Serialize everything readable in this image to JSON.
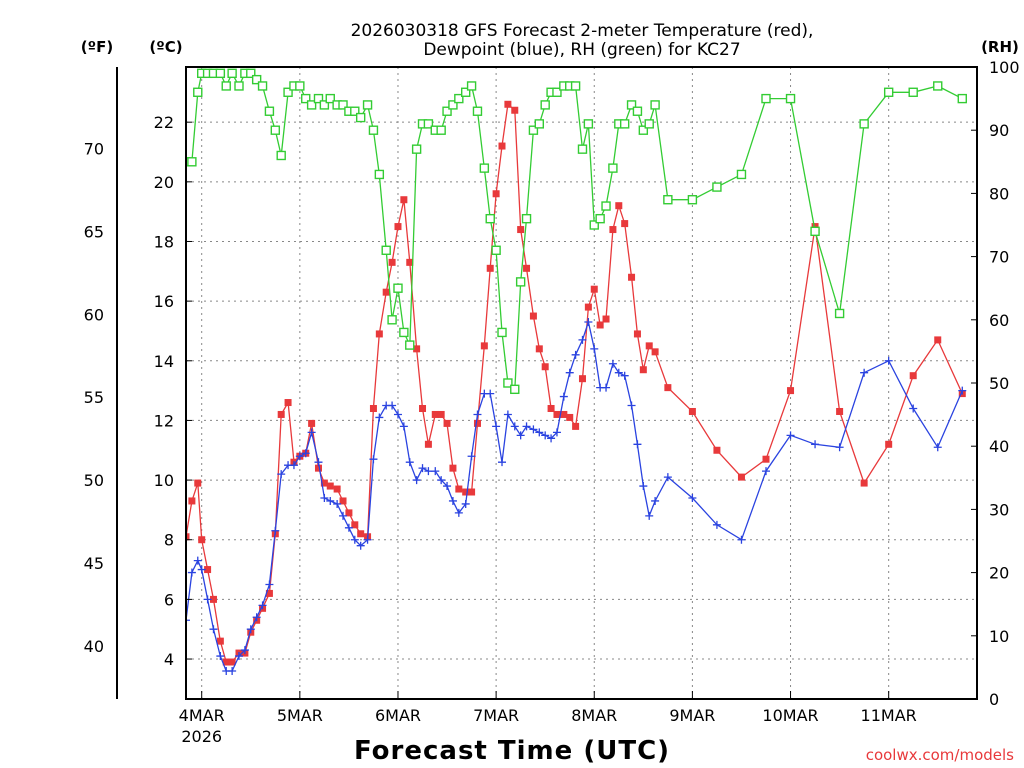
{
  "chart_data": {
    "type": "line",
    "title_line1": "2026030318 GFS Forecast 2-meter Temperature (red),",
    "title_line2": "Dewpoint (blue), RH (green) for KC27",
    "xlabel": "Forecast Time (UTC)",
    "credit": "coolwx.com/models",
    "units_f": "(ºF)",
    "units_c": "(ºC)",
    "units_rh": "(RH)",
    "xlim": [
      -0.16,
      7.9
    ],
    "ylim_c": [
      2.66,
      23.85
    ],
    "ylim_rh": [
      0,
      100
    ],
    "yticks_c": [
      4,
      6,
      8,
      10,
      12,
      14,
      16,
      18,
      20,
      22
    ],
    "yticks_c_labels": [
      "4",
      "6",
      "8",
      "10",
      "12",
      "14",
      "16",
      "18",
      "20",
      "22"
    ],
    "yticks_f": [
      40,
      45,
      50,
      55,
      60,
      65,
      70
    ],
    "yticks_f_labels": [
      "40",
      "45",
      "50",
      "55",
      "60",
      "65",
      "70"
    ],
    "yticks_rh": [
      0,
      10,
      20,
      30,
      40,
      50,
      60,
      70,
      80,
      90,
      100
    ],
    "yticks_rh_labels": [
      "0",
      "10",
      "20",
      "30",
      "40",
      "50",
      "60",
      "70",
      "80",
      "90",
      "100"
    ],
    "xticks": [
      0,
      1,
      2,
      3,
      4,
      5,
      6,
      7
    ],
    "xtick_labels": [
      "4MAR",
      "5MAR",
      "6MAR",
      "7MAR",
      "8MAR",
      "9MAR",
      "10MAR",
      "11MAR"
    ],
    "xtick_sublabel": "2026",
    "colors": {
      "temperature": "#e8393b",
      "dewpoint": "#2a43e0",
      "rh": "#33cc33"
    },
    "series": [
      {
        "name": "Temperature",
        "unit": "C",
        "x": [
          -0.16,
          -0.1,
          -0.04,
          0.0,
          0.06,
          0.12,
          0.19,
          0.25,
          0.31,
          0.38,
          0.44,
          0.5,
          0.56,
          0.62,
          0.69,
          0.75,
          0.81,
          0.88,
          0.94,
          1.0,
          1.06,
          1.12,
          1.19,
          1.25,
          1.31,
          1.38,
          1.44,
          1.5,
          1.56,
          1.62,
          1.69,
          1.75,
          1.81,
          1.88,
          1.94,
          2.0,
          2.06,
          2.12,
          2.19,
          2.25,
          2.31,
          2.38,
          2.44,
          2.5,
          2.56,
          2.62,
          2.69,
          2.75,
          2.81,
          2.88,
          2.94,
          3.0,
          3.06,
          3.12,
          3.19,
          3.25,
          3.31,
          3.38,
          3.44,
          3.5,
          3.56,
          3.62,
          3.69,
          3.75,
          3.81,
          3.88,
          3.94,
          4.0,
          4.06,
          4.12,
          4.19,
          4.25,
          4.31,
          4.38,
          4.44,
          4.5,
          4.56,
          4.62,
          4.75,
          5.0,
          5.25,
          5.5,
          5.75,
          6.0,
          6.25,
          6.5,
          6.75,
          7.0,
          7.25,
          7.5,
          7.75
        ],
        "y": [
          8.1,
          9.3,
          9.9,
          8.0,
          7.0,
          6.0,
          4.6,
          3.9,
          3.9,
          4.2,
          4.2,
          4.9,
          5.3,
          5.7,
          6.2,
          8.2,
          12.2,
          12.6,
          10.6,
          10.8,
          10.9,
          11.9,
          10.4,
          9.9,
          9.8,
          9.7,
          9.3,
          8.9,
          8.5,
          8.2,
          8.1,
          12.4,
          14.9,
          16.3,
          17.3,
          18.5,
          19.4,
          17.3,
          14.4,
          12.4,
          11.2,
          12.2,
          12.2,
          11.9,
          10.4,
          9.7,
          9.6,
          9.6,
          11.9,
          14.5,
          17.1,
          19.6,
          21.2,
          22.6,
          22.4,
          18.4,
          17.1,
          15.5,
          14.4,
          13.8,
          12.4,
          12.2,
          12.2,
          12.1,
          11.8,
          13.4,
          15.8,
          16.4,
          15.2,
          15.4,
          18.4,
          19.2,
          18.6,
          16.8,
          14.9,
          13.7,
          14.5,
          14.3,
          13.1,
          12.3,
          11.0,
          10.1,
          10.7,
          13.0,
          18.5,
          12.3,
          9.9,
          11.2,
          13.5,
          14.7,
          12.9
        ]
      },
      {
        "name": "Dewpoint",
        "unit": "C",
        "x": [
          -0.16,
          -0.1,
          -0.04,
          0.0,
          0.06,
          0.12,
          0.19,
          0.25,
          0.31,
          0.38,
          0.44,
          0.5,
          0.56,
          0.62,
          0.69,
          0.75,
          0.81,
          0.88,
          0.94,
          1.0,
          1.06,
          1.12,
          1.19,
          1.25,
          1.31,
          1.38,
          1.44,
          1.5,
          1.56,
          1.62,
          1.69,
          1.75,
          1.81,
          1.88,
          1.94,
          2.0,
          2.06,
          2.12,
          2.19,
          2.25,
          2.31,
          2.38,
          2.44,
          2.5,
          2.56,
          2.62,
          2.69,
          2.75,
          2.81,
          2.88,
          2.94,
          3.0,
          3.06,
          3.12,
          3.19,
          3.25,
          3.31,
          3.38,
          3.44,
          3.5,
          3.56,
          3.62,
          3.69,
          3.75,
          3.81,
          3.88,
          3.94,
          4.0,
          4.06,
          4.12,
          4.19,
          4.25,
          4.31,
          4.38,
          4.44,
          4.5,
          4.56,
          4.62,
          4.75,
          5.0,
          5.25,
          5.5,
          5.75,
          6.0,
          6.25,
          6.5,
          6.75,
          7.0,
          7.25,
          7.5,
          7.75
        ],
        "y": [
          5.3,
          6.9,
          7.3,
          7.0,
          6.0,
          5.0,
          4.1,
          3.6,
          3.6,
          4.1,
          4.3,
          5.0,
          5.4,
          5.8,
          6.5,
          8.3,
          10.2,
          10.5,
          10.5,
          10.8,
          10.9,
          11.6,
          10.6,
          9.4,
          9.3,
          9.2,
          8.8,
          8.4,
          8.0,
          7.8,
          8.0,
          10.7,
          12.1,
          12.5,
          12.5,
          12.2,
          11.8,
          10.6,
          10.0,
          10.4,
          10.3,
          10.3,
          10.0,
          9.8,
          9.3,
          8.9,
          9.2,
          10.8,
          12.2,
          12.9,
          12.9,
          11.8,
          10.6,
          12.2,
          11.8,
          11.5,
          11.8,
          11.7,
          11.6,
          11.5,
          11.4,
          11.6,
          12.8,
          13.6,
          14.2,
          14.7,
          15.3,
          14.4,
          13.1,
          13.1,
          13.9,
          13.6,
          13.5,
          12.5,
          11.2,
          9.8,
          8.8,
          9.3,
          10.1,
          9.4,
          8.5,
          8.0,
          10.3,
          11.5,
          11.2,
          11.1,
          13.6,
          14.0,
          12.4,
          11.1,
          13.0
        ]
      },
      {
        "name": "RH",
        "unit": "%",
        "x": [
          -0.16,
          -0.1,
          -0.04,
          0.0,
          0.06,
          0.12,
          0.19,
          0.25,
          0.31,
          0.38,
          0.44,
          0.5,
          0.56,
          0.62,
          0.69,
          0.75,
          0.81,
          0.88,
          0.94,
          1.0,
          1.06,
          1.12,
          1.19,
          1.25,
          1.31,
          1.38,
          1.44,
          1.5,
          1.56,
          1.62,
          1.69,
          1.75,
          1.81,
          1.88,
          1.94,
          2.0,
          2.06,
          2.12,
          2.19,
          2.25,
          2.31,
          2.38,
          2.44,
          2.5,
          2.56,
          2.62,
          2.69,
          2.75,
          2.81,
          2.88,
          2.94,
          3.0,
          3.06,
          3.12,
          3.19,
          3.25,
          3.31,
          3.38,
          3.44,
          3.5,
          3.56,
          3.62,
          3.69,
          3.75,
          3.81,
          3.88,
          3.94,
          4.0,
          4.06,
          4.12,
          4.19,
          4.25,
          4.31,
          4.38,
          4.44,
          4.5,
          4.56,
          4.62,
          4.75,
          5.0,
          5.25,
          5.5,
          5.75,
          6.0,
          6.25,
          6.5,
          6.75,
          7.0,
          7.25,
          7.5,
          7.75
        ],
        "y": [
          85,
          85,
          96,
          99,
          99,
          99,
          99,
          97,
          99,
          97,
          99,
          99,
          98,
          97,
          93,
          90,
          86,
          96,
          97,
          97,
          95,
          94,
          95,
          94,
          95,
          94,
          94,
          93,
          93,
          92,
          94,
          90,
          83,
          71,
          60,
          65,
          58,
          56,
          87,
          91,
          91,
          90,
          90,
          93,
          94,
          95,
          96,
          97,
          93,
          84,
          76,
          71,
          58,
          50,
          49,
          66,
          76,
          90,
          91,
          94,
          96,
          96,
          97,
          97,
          97,
          87,
          91,
          75,
          76,
          78,
          84,
          91,
          91,
          94,
          93,
          90,
          91,
          94,
          79,
          79,
          81,
          83,
          95,
          95,
          74,
          61,
          91,
          96,
          96,
          97,
          95
        ]
      }
    ]
  }
}
